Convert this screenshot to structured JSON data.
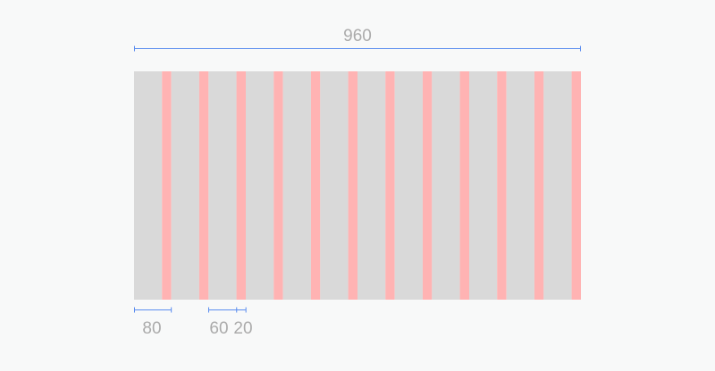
{
  "grid": {
    "total_width_label": "960",
    "column_count": 12,
    "column_width": 60,
    "gutter_width": 20,
    "column_color": "#d9d9d9",
    "gutter_color": "#ffb3b3",
    "dimension_color": "#5b8def"
  },
  "labels": {
    "total": "960",
    "column_plus_gutter": "80",
    "column": "60",
    "gutter": "20"
  }
}
